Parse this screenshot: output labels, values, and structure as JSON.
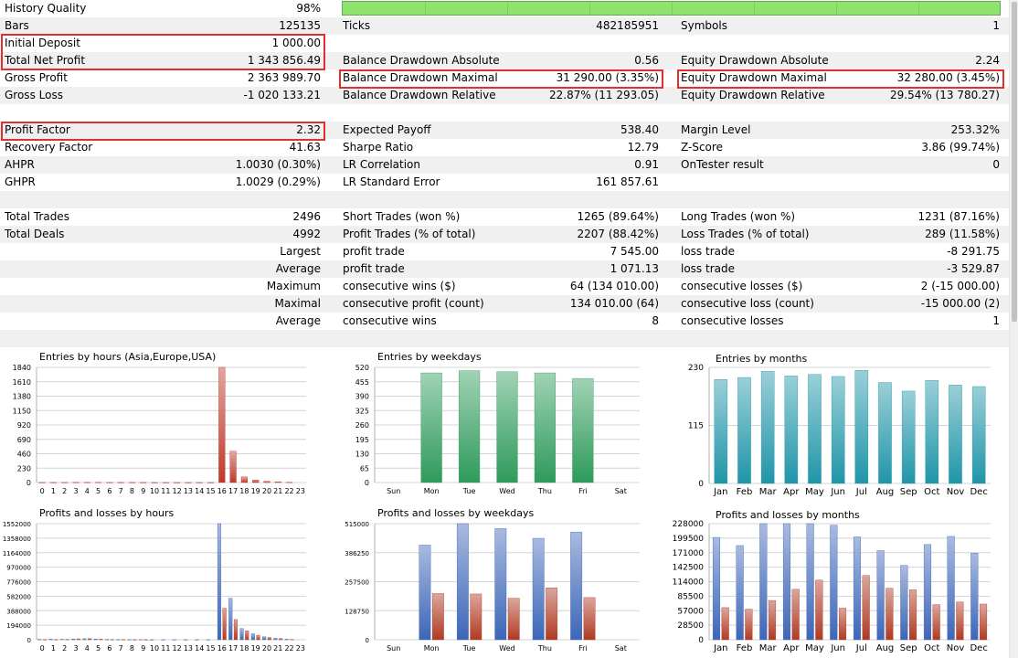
{
  "stats": {
    "history_quality": {
      "label": "History Quality",
      "value": "98%"
    },
    "bars": {
      "label": "Bars",
      "value": "125135"
    },
    "ticks": {
      "label": "Ticks",
      "value": "482185951"
    },
    "symbols": {
      "label": "Symbols",
      "value": "1"
    },
    "initial_deposit": {
      "label": "Initial Deposit",
      "value": "1 000.00"
    },
    "total_net_profit": {
      "label": "Total Net Profit",
      "value": "1 343 856.49"
    },
    "balance_dd_abs": {
      "label": "Balance Drawdown Absolute",
      "value": "0.56"
    },
    "equity_dd_abs": {
      "label": "Equity Drawdown Absolute",
      "value": "2.24"
    },
    "gross_profit": {
      "label": "Gross Profit",
      "value": "2 363 989.70"
    },
    "balance_dd_max": {
      "label": "Balance Drawdown Maximal",
      "value": "31 290.00 (3.35%)"
    },
    "equity_dd_max": {
      "label": "Equity Drawdown Maximal",
      "value": "32 280.00 (3.45%)"
    },
    "gross_loss": {
      "label": "Gross Loss",
      "value": "-1 020 133.21"
    },
    "balance_dd_rel": {
      "label": "Balance Drawdown Relative",
      "value": "22.87% (11 293.05)"
    },
    "equity_dd_rel": {
      "label": "Equity Drawdown Relative",
      "value": "29.54% (13 780.27)"
    },
    "profit_factor": {
      "label": "Profit Factor",
      "value": "2.32"
    },
    "expected_payoff": {
      "label": "Expected Payoff",
      "value": "538.40"
    },
    "margin_level": {
      "label": "Margin Level",
      "value": "253.32%"
    },
    "recovery_factor": {
      "label": "Recovery Factor",
      "value": "41.63"
    },
    "sharpe_ratio": {
      "label": "Sharpe Ratio",
      "value": "12.79"
    },
    "z_score": {
      "label": "Z-Score",
      "value": "3.86 (99.74%)"
    },
    "ahpr": {
      "label": "AHPR",
      "value": "1.0030 (0.30%)"
    },
    "lr_correlation": {
      "label": "LR Correlation",
      "value": "0.91"
    },
    "ontester": {
      "label": "OnTester result",
      "value": "0"
    },
    "ghpr": {
      "label": "GHPR",
      "value": "1.0029 (0.29%)"
    },
    "lr_std_error": {
      "label": "LR Standard Error",
      "value": "161 857.61"
    },
    "total_trades": {
      "label": "Total Trades",
      "value": "2496"
    },
    "short_trades": {
      "label": "Short Trades (won %)",
      "value": "1265 (89.64%)"
    },
    "long_trades": {
      "label": "Long Trades (won %)",
      "value": "1231 (87.16%)"
    },
    "total_deals": {
      "label": "Total Deals",
      "value": "4992"
    },
    "profit_trades": {
      "label": "Profit Trades (% of total)",
      "value": "2207 (88.42%)"
    },
    "loss_trades": {
      "label": "Loss Trades (% of total)",
      "value": "289 (11.58%)"
    },
    "largest": {
      "label": "Largest",
      "l2": "profit trade",
      "v2": "7 545.00",
      "l3": "loss trade",
      "v3": "-8 291.75"
    },
    "average": {
      "label": "Average",
      "l2": "profit trade",
      "v2": "1 071.13",
      "l3": "loss trade",
      "v3": "-3 529.87"
    },
    "maximum": {
      "label": "Maximum",
      "l2": "consecutive wins ($)",
      "v2": "64 (134 010.00)",
      "l3": "consecutive losses ($)",
      "v3": "2 (-15 000.00)"
    },
    "maximal": {
      "label": "Maximal",
      "l2": "consecutive profit (count)",
      "v2": "134 010.00 (64)",
      "l3": "consecutive loss (count)",
      "v3": "-15 000.00 (2)"
    },
    "average2": {
      "label": "Average",
      "l2": "consecutive wins",
      "v2": "8",
      "l3": "consecutive losses",
      "v3": "1"
    }
  },
  "colors": {
    "highlight": "#e03030",
    "quality_bar": "#8ee36e",
    "entries_hours": "#c0392b",
    "entries_weekdays": "#2e9a5a",
    "entries_months": "#1f95a8",
    "profit": "#3d66b8",
    "loss": "#b03a22"
  },
  "chart_data": [
    {
      "id": "entries-hours",
      "type": "bar",
      "title": "Entries by hours (Asia,Europe,USA)",
      "categories": [
        "0",
        "1",
        "2",
        "3",
        "4",
        "5",
        "6",
        "7",
        "8",
        "9",
        "10",
        "11",
        "12",
        "13",
        "14",
        "15",
        "16",
        "17",
        "18",
        "19",
        "20",
        "21",
        "22",
        "23"
      ],
      "values": [
        2,
        2,
        2,
        3,
        4,
        3,
        2,
        2,
        2,
        2,
        1,
        1,
        1,
        1,
        1,
        1,
        1840,
        500,
        90,
        40,
        20,
        12,
        5,
        0
      ],
      "yticks": [
        "0",
        "230",
        "460",
        "690",
        "920",
        "1150",
        "1380",
        "1610",
        "1840"
      ],
      "ylim": [
        0,
        1840
      ],
      "grid": true
    },
    {
      "id": "entries-weekdays",
      "type": "bar",
      "title": "Entries by weekdays",
      "categories": [
        "Sun",
        "Mon",
        "Tue",
        "Wed",
        "Thu",
        "Fri",
        "Sat"
      ],
      "values": [
        0,
        495,
        505,
        500,
        495,
        470,
        0
      ],
      "yticks": [
        "0",
        "65",
        "130",
        "195",
        "260",
        "325",
        "390",
        "455",
        "520"
      ],
      "ylim": [
        0,
        520
      ],
      "grid": true
    },
    {
      "id": "entries-months",
      "type": "bar",
      "title": "Entries by months",
      "categories": [
        "Jan",
        "Feb",
        "Mar",
        "Apr",
        "May",
        "Jun",
        "Jul",
        "Aug",
        "Sep",
        "Oct",
        "Nov",
        "Dec"
      ],
      "values": [
        206,
        210,
        222,
        213,
        216,
        212,
        224,
        200,
        183,
        204,
        195,
        192
      ],
      "yticks": [
        "0",
        "115",
        "230"
      ],
      "ylim": [
        0,
        230
      ],
      "grid": true
    },
    {
      "id": "pl-hours",
      "type": "bar",
      "title": "Profits and losses by hours",
      "categories": [
        "0",
        "1",
        "2",
        "3",
        "4",
        "5",
        "6",
        "7",
        "8",
        "9",
        "10",
        "11",
        "12",
        "13",
        "14",
        "15",
        "16",
        "17",
        "18",
        "19",
        "20",
        "21",
        "22",
        "23"
      ],
      "series": [
        {
          "values": [
            5000,
            8000,
            6000,
            10000,
            14000,
            9000,
            5000,
            3000,
            2000,
            2000,
            1000,
            1000,
            1000,
            1000,
            1000,
            1000,
            1552000,
            555000,
            150000,
            80000,
            40000,
            20000,
            8000,
            0
          ]
        },
        {
          "values": [
            3000,
            4000,
            5000,
            12000,
            16000,
            8000,
            4000,
            2000,
            1000,
            1000,
            0,
            0,
            0,
            0,
            0,
            0,
            420000,
            270000,
            120000,
            60000,
            30000,
            15000,
            5000,
            0
          ]
        }
      ],
      "yticks": [
        "0",
        "194000",
        "388000",
        "582000",
        "776000",
        "970000",
        "1164000",
        "1358000",
        "1552000"
      ],
      "ylim": [
        0,
        1552000
      ],
      "grid": true
    },
    {
      "id": "pl-weekdays",
      "type": "bar",
      "title": "Profits and losses by weekdays",
      "categories": [
        "Sun",
        "Mon",
        "Tue",
        "Wed",
        "Thu",
        "Fri",
        "Sat"
      ],
      "series": [
        {
          "values": [
            0,
            420000,
            515000,
            493000,
            450000,
            478000,
            0
          ]
        },
        {
          "values": [
            0,
            205000,
            203000,
            184000,
            230000,
            187000,
            0
          ]
        }
      ],
      "yticks": [
        "0",
        "128750",
        "257500",
        "386250",
        "515000"
      ],
      "ylim": [
        0,
        515000
      ],
      "grid": true
    },
    {
      "id": "pl-months",
      "type": "bar",
      "title": "Profits and losses by months",
      "categories": [
        "Jan",
        "Feb",
        "Mar",
        "Apr",
        "May",
        "Jun",
        "Jul",
        "Aug",
        "Sep",
        "Oct",
        "Nov",
        "Dec"
      ],
      "series": [
        {
          "values": [
            201000,
            185000,
            228000,
            228000,
            228000,
            225000,
            202000,
            175000,
            146000,
            187000,
            203000,
            170000
          ]
        },
        {
          "values": [
            63000,
            60000,
            77000,
            99000,
            117000,
            62000,
            126000,
            101000,
            98000,
            69000,
            74000,
            70000
          ]
        }
      ],
      "yticks": [
        "0",
        "28500",
        "57000",
        "85500",
        "114000",
        "142500",
        "171000",
        "199500",
        "228000"
      ],
      "ylim": [
        0,
        228000
      ],
      "grid": true
    }
  ]
}
